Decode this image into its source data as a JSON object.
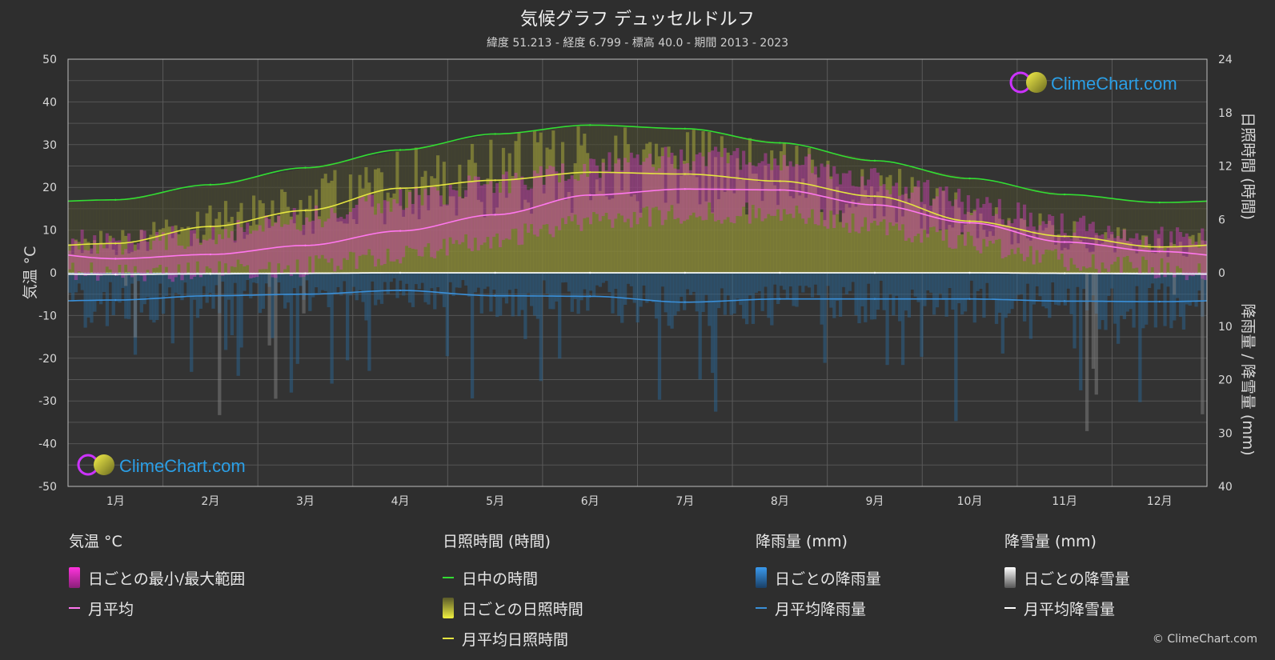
{
  "header": {
    "title": "気候グラフ デュッセルドルフ",
    "subtitle": "緯度 51.213 - 経度 6.799 - 標高 40.0 - 期間 2013 - 2023"
  },
  "brand": {
    "name": "ClimeChart.com",
    "copyright": "© ClimeChart.com"
  },
  "chart_data": {
    "type": "line",
    "categories": [
      "1月",
      "2月",
      "3月",
      "4月",
      "5月",
      "6月",
      "7月",
      "8月",
      "9月",
      "10月",
      "11月",
      "12月"
    ],
    "y_left": {
      "label": "気温 °C",
      "range": [
        -50,
        50
      ],
      "ticks": [
        50,
        40,
        30,
        20,
        10,
        0,
        -10,
        -20,
        -30,
        -40,
        -50
      ]
    },
    "y_right_top": {
      "label": "日照時間 (時間)",
      "range": [
        0,
        24
      ],
      "ticks": [
        24,
        18,
        12,
        6,
        0
      ]
    },
    "y_right_bottom": {
      "label": "降雨量 / 降雪量 (mm)",
      "range": [
        0,
        40
      ],
      "ticks": [
        10,
        20,
        30,
        40
      ]
    },
    "series": [
      {
        "name": "日中の時間",
        "axis": "sunshine_hours",
        "color": "#33dd33",
        "values": [
          8.2,
          9.9,
          11.8,
          13.8,
          15.6,
          16.6,
          16.2,
          14.6,
          12.6,
          10.6,
          8.8,
          7.9
        ]
      },
      {
        "name": "月平均日照時間",
        "axis": "sunshine_hours",
        "color": "#e5e540",
        "values": [
          3.3,
          5.2,
          7.0,
          9.5,
          10.4,
          11.3,
          11.1,
          10.3,
          8.6,
          5.8,
          4.1,
          2.9
        ]
      },
      {
        "name": "月平均",
        "axis": "temperature_c",
        "color": "#ff77ee",
        "values": [
          3.3,
          4.3,
          6.4,
          9.8,
          13.6,
          18.2,
          19.6,
          19.4,
          15.9,
          11.7,
          7.2,
          5.0
        ]
      },
      {
        "name": "月平均降雨量",
        "axis": "precipitation_mm",
        "color": "#3a8fd8",
        "values": [
          5.1,
          4.3,
          4.0,
          3.3,
          4.3,
          4.4,
          5.5,
          4.9,
          4.9,
          4.9,
          5.3,
          5.4
        ]
      },
      {
        "name": "月平均降雪量",
        "axis": "precipitation_mm",
        "color": "#ffffff",
        "values": [
          0.3,
          0.2,
          0.1,
          0,
          0,
          0,
          0,
          0,
          0,
          0,
          0.1,
          0.2
        ]
      }
    ],
    "daily_temperature_range": {
      "min": [
        0,
        0.5,
        1.5,
        4,
        8,
        12,
        14,
        14,
        11,
        7,
        3,
        1
      ],
      "max": [
        7,
        9,
        13,
        17,
        21,
        25,
        27,
        26,
        22,
        16,
        11,
        8
      ]
    },
    "grid": true
  },
  "legend": {
    "temperature": {
      "heading": "気温 °C",
      "items": [
        "日ごとの最小/最大範囲",
        "月平均"
      ]
    },
    "sunshine": {
      "heading": "日照時間 (時間)",
      "items": [
        "日中の時間",
        "日ごとの日照時間",
        "月平均日照時間"
      ]
    },
    "rain": {
      "heading": "降雨量 (mm)",
      "items": [
        "日ごとの降雨量",
        "月平均降雨量"
      ]
    },
    "snow": {
      "heading": "降雪量 (mm)",
      "items": [
        "日ごとの降雪量",
        "月平均降雪量"
      ]
    }
  },
  "colors": {
    "background": "#2e2e2e",
    "temp_range": "#e040c8",
    "sunshine_band": "#c8c832",
    "rain_bars": "#2d6ea0",
    "snow_bars": "#9a9a9a"
  }
}
